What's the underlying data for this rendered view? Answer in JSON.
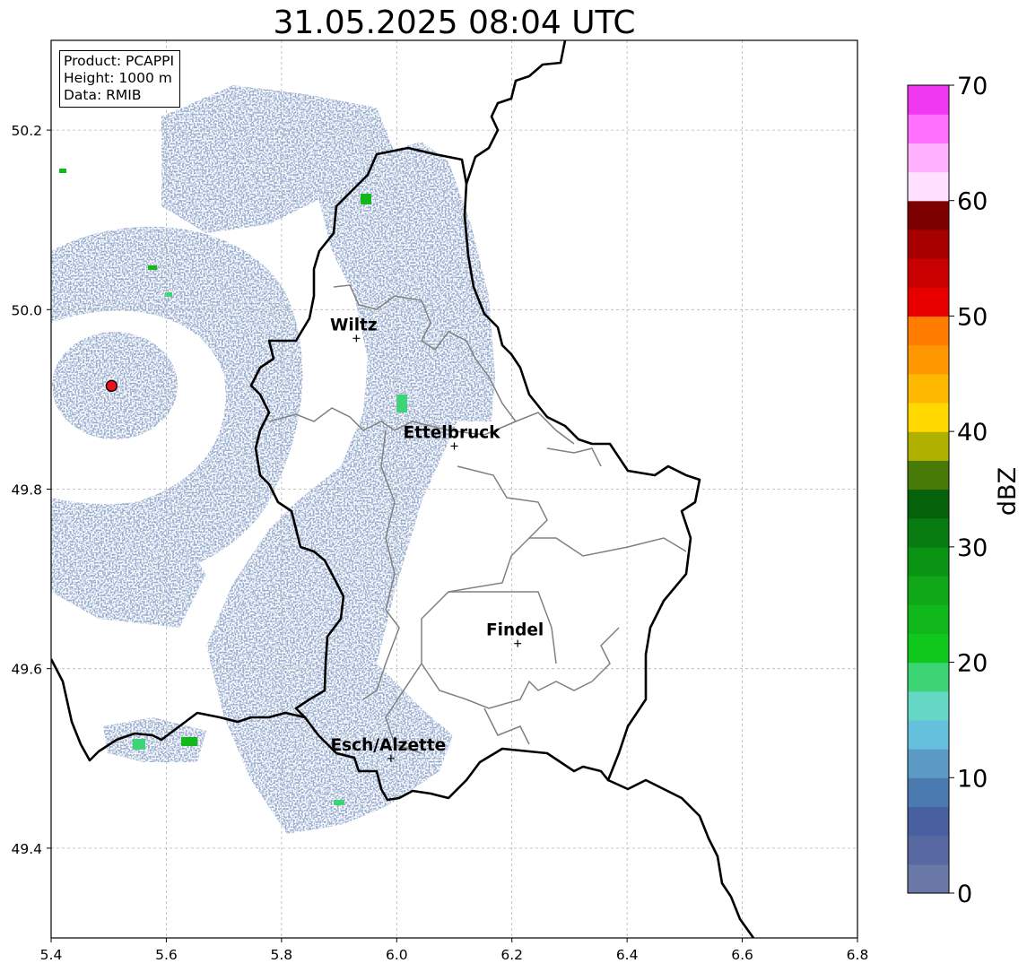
{
  "title": "31.05.2025 08:04 UTC",
  "info": {
    "product": "Product: PCAPPI",
    "height": "Height: 1000 m",
    "data": "Data: RMIB"
  },
  "map": {
    "lon_range": [
      5.4,
      6.8
    ],
    "lat_range": [
      49.3,
      50.3
    ],
    "x_ticks": [
      5.4,
      5.6,
      5.8,
      6.0,
      6.2,
      6.4,
      6.6,
      6.8
    ],
    "x_tick_labels": [
      "5.4",
      "5.6",
      "5.8",
      "6.0",
      "6.2",
      "6.4",
      "6.6",
      "6.8"
    ],
    "y_ticks": [
      49.4,
      49.6,
      49.8,
      50.0,
      50.2
    ],
    "y_tick_labels": [
      "49.4",
      "49.6",
      "49.8",
      "50.0",
      "50.2"
    ],
    "grid": true,
    "radar_site": {
      "lon": 5.505,
      "lat": 49.915,
      "color": "#e8121b"
    },
    "cities": [
      {
        "name": "Wiltz",
        "lon": 5.93,
        "lat": 49.968
      },
      {
        "name": "Ettelbruck",
        "lon": 6.1,
        "lat": 49.848
      },
      {
        "name": "Findel",
        "lon": 6.21,
        "lat": 49.628
      },
      {
        "name": "Esch/Alzette",
        "lon": 5.99,
        "lat": 49.5
      }
    ]
  },
  "colorbar": {
    "label": "dBZ",
    "range": [
      0,
      70
    ],
    "ticks": [
      0,
      10,
      20,
      30,
      40,
      50,
      60,
      70
    ],
    "tick_labels": [
      "0",
      "10",
      "20",
      "30",
      "40",
      "50",
      "60",
      "70"
    ],
    "colors": [
      "#6a78a8",
      "#5868a0",
      "#4860a0",
      "#4a7ab0",
      "#5a9ac4",
      "#64c0dc",
      "#64d8c4",
      "#3cd474",
      "#10c81c",
      "#10b81c",
      "#10a818",
      "#0a9414",
      "#087c10",
      "#06620a",
      "#487a08",
      "#b0b000",
      "#ffd800",
      "#ffb800",
      "#ff9800",
      "#ff7c00",
      "#e80000",
      "#c80000",
      "#a80000",
      "#7c0000",
      "#ffe0ff",
      "#ffb0ff",
      "#ff70ff",
      "#f038f0"
    ]
  }
}
